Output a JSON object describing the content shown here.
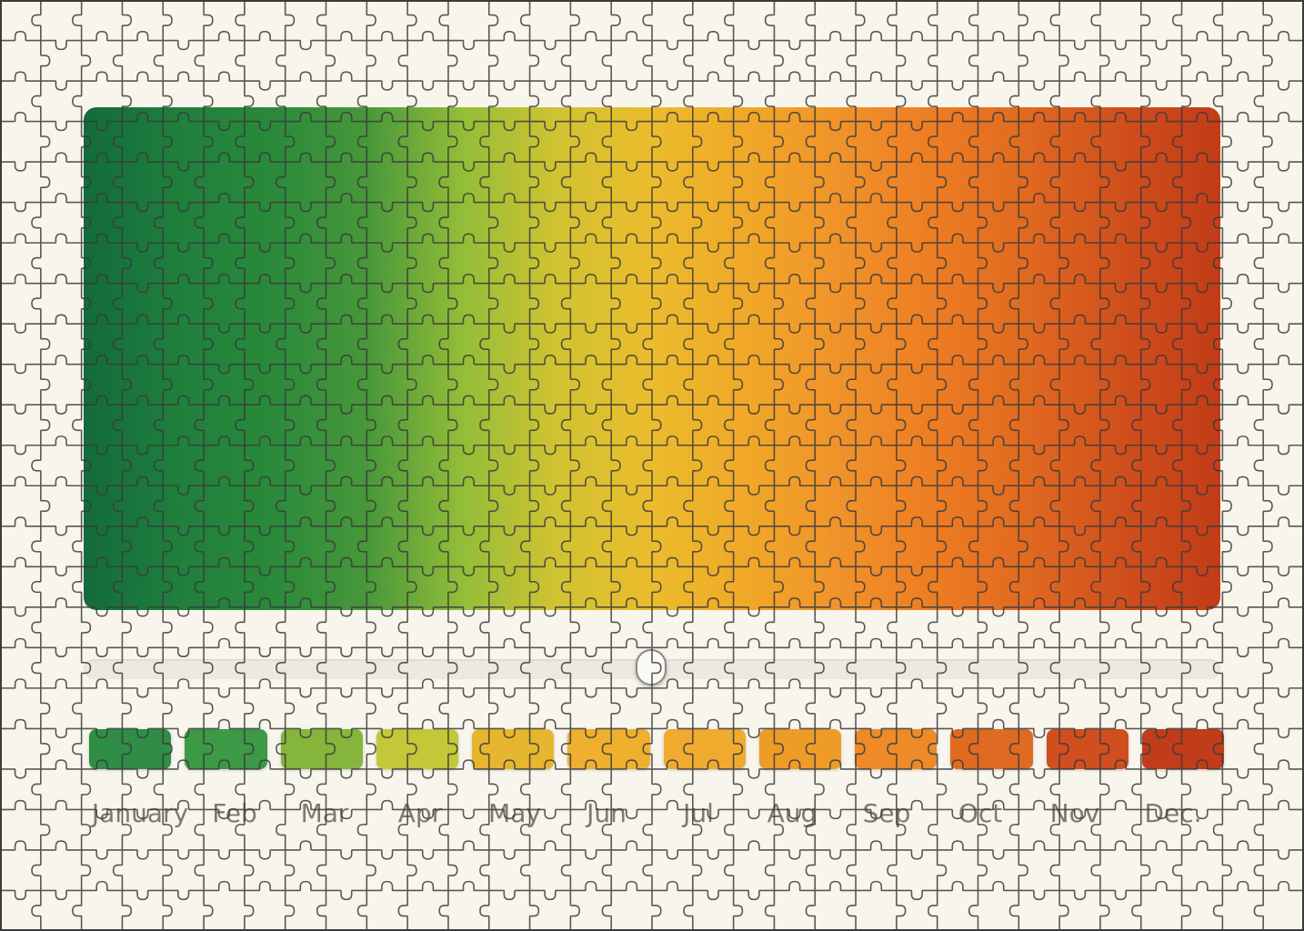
{
  "gradient": {
    "stops": [
      "#136b3b",
      "#1f7f3c",
      "#2a8a3a",
      "#48983a",
      "#93bd38",
      "#d1c332",
      "#ebbc2c",
      "#f1a828",
      "#f0922a",
      "#ed7c22",
      "#e06820",
      "#cf4e1c",
      "#c13c17"
    ]
  },
  "slider": {
    "value_fraction": 0.49
  },
  "months": [
    {
      "label": "January",
      "color": "#2f8d45"
    },
    {
      "label": "Feb",
      "color": "#3c9a46"
    },
    {
      "label": "Mar",
      "color": "#86b53c"
    },
    {
      "label": "Apr",
      "color": "#c4c737"
    },
    {
      "label": "May",
      "color": "#e6b62e"
    },
    {
      "label": "Jun",
      "color": "#efb02f"
    },
    {
      "label": "Jul",
      "color": "#f0aa2e"
    },
    {
      "label": "Aug",
      "color": "#ef9b28"
    },
    {
      "label": "Sep",
      "color": "#ee8a27"
    },
    {
      "label": "Oct",
      "color": "#e06a22"
    },
    {
      "label": "Nov",
      "color": "#d14e1e"
    },
    {
      "label": "Dec.",
      "color": "#c13c1a"
    }
  ],
  "colors": {
    "background": "#f8f5ec",
    "puzzle_lines": "#3b3b3b",
    "label_text": "#7d7a74"
  }
}
